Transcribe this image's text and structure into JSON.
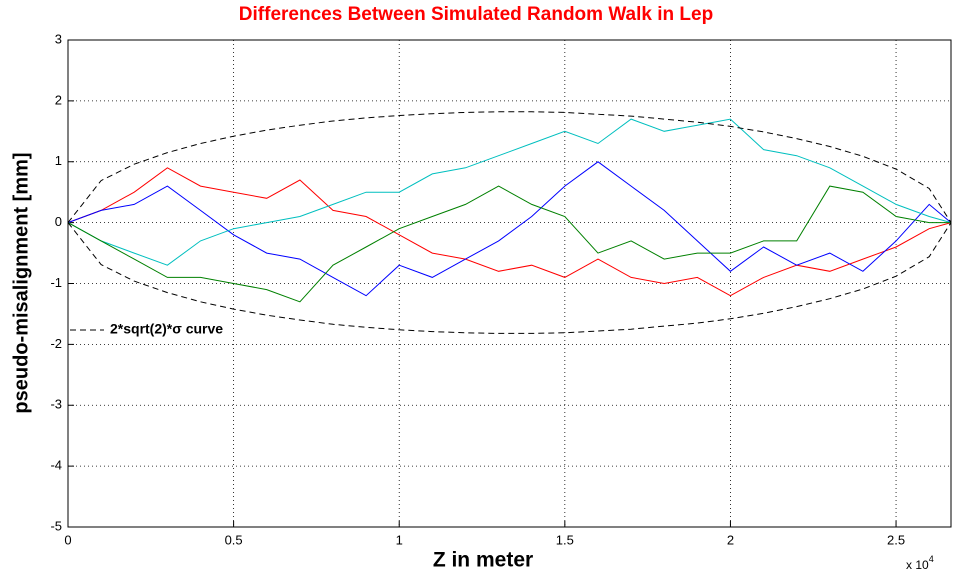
{
  "chart_data": {
    "type": "line",
    "title": "Differences Between Simulated Random Walk in Lep",
    "title_color": "#ff0000",
    "x_label": "Z in meter",
    "y_label": "pseudo-misalignment [mm]",
    "x_multiplier": {
      "base": "x 10",
      "exponent": "4"
    },
    "x": [
      0,
      1000,
      2000,
      3000,
      4000,
      5000,
      6000,
      7000,
      8000,
      9000,
      10000,
      11000,
      12000,
      13000,
      14000,
      15000,
      16000,
      17000,
      18000,
      19000,
      20000,
      21000,
      22000,
      23000,
      24000,
      25000,
      26000,
      26659
    ],
    "xlim": [
      0,
      26659
    ],
    "xticks": [
      0,
      {
        "value": 5000,
        "label": "0.5"
      },
      {
        "value": 10000,
        "label": "1"
      },
      {
        "value": 15000,
        "label": "1.5"
      },
      {
        "value": 20000,
        "label": "2"
      },
      {
        "value": 25000,
        "label": "2.5"
      }
    ],
    "ylim": [
      -5,
      3
    ],
    "yticks": [
      -5,
      -4,
      -3,
      -2,
      -1,
      0,
      1,
      2,
      3
    ],
    "grid": true,
    "legend": "left",
    "series": [
      {
        "color": "#ff0000",
        "values": [
          0,
          0.2,
          0.5,
          0.9,
          0.6,
          0.5,
          0.4,
          0.7,
          0.2,
          0.1,
          -0.2,
          -0.5,
          -0.6,
          -0.8,
          -0.7,
          -0.9,
          -0.6,
          -0.9,
          -1.0,
          -0.9,
          -1.2,
          -0.9,
          -0.7,
          -0.8,
          -0.6,
          -0.4,
          -0.1,
          0
        ]
      },
      {
        "color": "#0000ff",
        "values": [
          0,
          0.2,
          0.3,
          0.6,
          0.2,
          -0.2,
          -0.5,
          -0.6,
          -0.9,
          -1.2,
          -0.7,
          -0.9,
          -0.6,
          -0.3,
          0.1,
          0.6,
          1.0,
          0.6,
          0.2,
          -0.3,
          -0.8,
          -0.4,
          -0.7,
          -0.5,
          -0.8,
          -0.3,
          0.3,
          0
        ]
      },
      {
        "color": "#00bfbf",
        "values": [
          0,
          -0.3,
          -0.5,
          -0.7,
          -0.3,
          -0.1,
          0.0,
          0.1,
          0.3,
          0.5,
          0.5,
          0.8,
          0.9,
          1.1,
          1.3,
          1.5,
          1.3,
          1.7,
          1.5,
          1.6,
          1.7,
          1.2,
          1.1,
          0.9,
          0.6,
          0.3,
          0.1,
          0
        ]
      },
      {
        "color": "#008000",
        "values": [
          0,
          -0.3,
          -0.6,
          -0.9,
          -0.9,
          -1.0,
          -1.1,
          -1.3,
          -0.7,
          -0.4,
          -0.1,
          0.1,
          0.3,
          0.6,
          0.3,
          0.1,
          -0.5,
          -0.3,
          -0.6,
          -0.5,
          -0.5,
          -0.3,
          -0.3,
          0.6,
          0.5,
          0.1,
          0.0,
          0
        ]
      },
      {
        "name": "2*sqrt(2)*σ curve",
        "color": "#000000",
        "dashed": true,
        "values": [
          0,
          0.69,
          0.96,
          1.15,
          1.3,
          1.42,
          1.52,
          1.6,
          1.67,
          1.72,
          1.76,
          1.79,
          1.81,
          1.82,
          1.82,
          1.81,
          1.78,
          1.75,
          1.7,
          1.65,
          1.58,
          1.49,
          1.38,
          1.25,
          1.09,
          0.88,
          0.56,
          0
        ],
        "lower_values": [
          0,
          -0.69,
          -0.96,
          -1.15,
          -1.3,
          -1.42,
          -1.52,
          -1.6,
          -1.67,
          -1.72,
          -1.76,
          -1.79,
          -1.81,
          -1.82,
          -1.82,
          -1.81,
          -1.78,
          -1.75,
          -1.7,
          -1.65,
          -1.58,
          -1.49,
          -1.38,
          -1.25,
          -1.09,
          -0.88,
          -0.56,
          0
        ]
      }
    ]
  }
}
